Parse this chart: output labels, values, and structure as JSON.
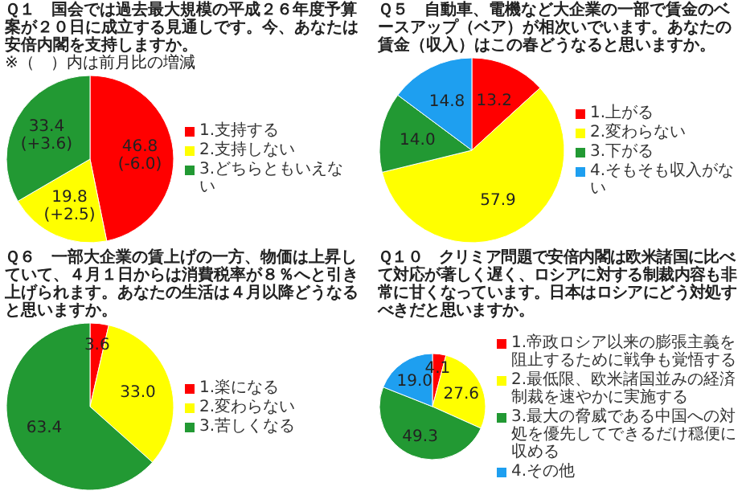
{
  "chart_data": [
    {
      "type": "pie",
      "title": "Ｑ１　国会では過去最大規模の平成２６年度予算案が２０日に成立する見通しです。今、あなたは安倍内閣を支持しますか。",
      "annotations": [
        "※（　）内は前月比の増減"
      ],
      "categories": [
        "1.支持する",
        "2.支持しない",
        "3.どちらともいえない"
      ],
      "values": [
        46.8,
        19.8,
        33.4
      ],
      "colors": [
        "#ff0000",
        "#ffff00",
        "#229933"
      ],
      "value_labels": [
        "46.8\n(-6.0)",
        "19.8\n(+2.5)",
        "33.4\n(+3.6)"
      ],
      "legend": "right"
    },
    {
      "type": "pie",
      "title": "Ｑ５　自動車、電機など大企業の一部で賃金のベースアップ（ベア）が相次いでいます。あなたの賃金（収入）はこの春どうなると思いますか。",
      "categories": [
        "1.上がる",
        "2.変わらない",
        "3.下がる",
        "4.そもそも収入がない"
      ],
      "values": [
        13.2,
        57.9,
        14.0,
        14.8
      ],
      "colors": [
        "#ff0000",
        "#ffff00",
        "#229933",
        "#1e9ff0"
      ],
      "value_labels": [
        "13.2",
        "57.9",
        "14.0",
        "14.8"
      ],
      "legend": "right"
    },
    {
      "type": "pie",
      "title": "Ｑ６　一部大企業の賃上げの一方、物価は上昇していて、４月１日からは消費税率が８％へと引き上げられます。あなたの生活は４月以降どうなると思いますか。",
      "categories": [
        "1.楽になる",
        "2.変わらない",
        "3.苦しくなる"
      ],
      "values": [
        3.6,
        33.0,
        63.4
      ],
      "colors": [
        "#ff0000",
        "#ffff00",
        "#229933"
      ],
      "value_labels": [
        "3.6",
        "33.0",
        "63.4"
      ],
      "legend": "right"
    },
    {
      "type": "pie",
      "title": "Ｑ１０　クリミア問題で安倍内閣は欧米諸国に比べて対応が著しく遅く、ロシアに対する制裁内容も非常に甘くなっています。日本はロシアにどう対処すべきだと思いますか。",
      "categories": [
        "1.帝政ロシア以来の膨張主義を阻止するために戦争も覚悟する",
        "2.最低限、欧米諸国並みの経済制裁を速やかに実施する",
        "3.最大の脅威である中国への対処を優先してできるだけ穏便に収める",
        "4.その他"
      ],
      "values": [
        4.1,
        27.6,
        49.3,
        19.0
      ],
      "colors": [
        "#ff0000",
        "#ffff00",
        "#229933",
        "#1e9ff0"
      ],
      "value_labels": [
        "4.1",
        "27.6",
        "49.3",
        "19.0"
      ],
      "legend": "right"
    }
  ]
}
